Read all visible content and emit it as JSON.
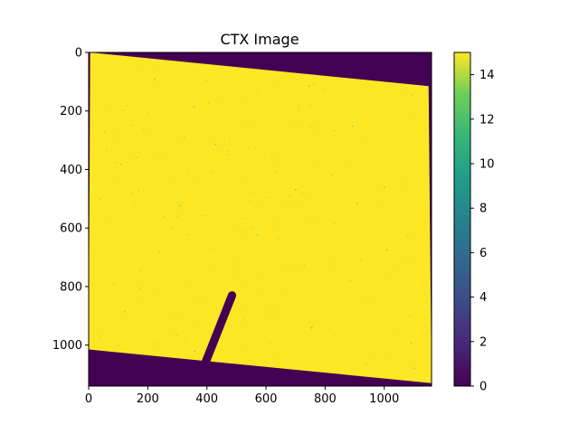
{
  "chart_data": {
    "type": "heatmap",
    "title": "CTX Image",
    "xlabel": "",
    "ylabel": "",
    "image_width": 1160,
    "image_height": 1140,
    "xlim": [
      0,
      1160
    ],
    "ylim": [
      1140,
      0
    ],
    "x_ticks": [
      0,
      200,
      400,
      600,
      800,
      1000
    ],
    "y_ticks": [
      0,
      200,
      400,
      600,
      800,
      1000
    ],
    "grid": false,
    "colormap": "viridis",
    "colorbar": {
      "min": 0,
      "max": 15,
      "ticks": [
        0,
        2,
        4,
        6,
        8,
        10,
        12,
        14
      ]
    },
    "regions": [
      {
        "name": "valid-data-quad",
        "value": 15,
        "polygon": [
          [
            5,
            0
          ],
          [
            1150,
            115
          ],
          [
            1160,
            1130
          ],
          [
            0,
            1015
          ]
        ]
      },
      {
        "name": "diagonal-stripe",
        "value": 0,
        "line": [
          [
            395,
            1060
          ],
          [
            485,
            830
          ]
        ],
        "width": 28
      }
    ],
    "colors": {
      "background": "#440154",
      "data": "#fde725",
      "speckle": "#3bb87a"
    }
  }
}
